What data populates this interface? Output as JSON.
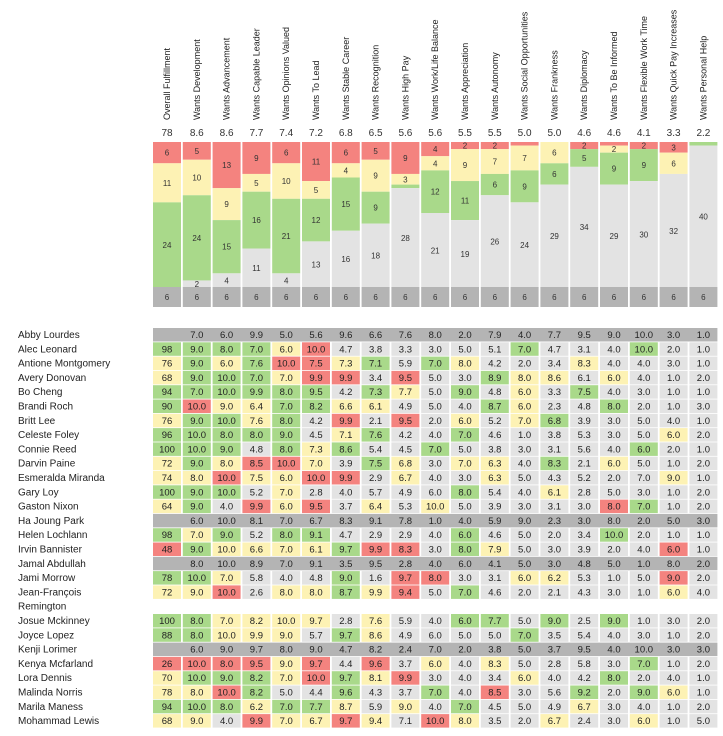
{
  "chart_data": {
    "type": "heatmap",
    "colors": {
      "red": "#f4837f",
      "yellow": "#fdf2b4",
      "green": "#a9d98a",
      "gray": "#e3e3e3",
      "darkgray": "#b4b4b4",
      "row_empty": "#b4b4b4"
    },
    "columns": [
      {
        "label": "Overall Fulfillment",
        "score": "78",
        "stack": [
          6,
          11,
          24,
          0
        ],
        "base": 6
      },
      {
        "label": "Wants Development",
        "score": "8.6",
        "stack": [
          5,
          10,
          24,
          2
        ],
        "base": 6
      },
      {
        "label": "Wants Advancement",
        "score": "8.6",
        "stack": [
          13,
          9,
          15,
          4
        ],
        "base": 6
      },
      {
        "label": "Wants Capable Leader",
        "score": "7.7",
        "stack": [
          9,
          5,
          16,
          11
        ],
        "base": 6
      },
      {
        "label": "Wants Opinions Valued",
        "score": "7.4",
        "stack": [
          6,
          10,
          21,
          4
        ],
        "base": 6
      },
      {
        "label": "Wants To Lead",
        "score": "7.2",
        "stack": [
          11,
          5,
          12,
          13
        ],
        "base": 6
      },
      {
        "label": "Wants Stable Career",
        "score": "6.8",
        "stack": [
          6,
          4,
          15,
          16
        ],
        "base": 6
      },
      {
        "label": "Wants Recognition",
        "score": "6.5",
        "stack": [
          5,
          9,
          9,
          18
        ],
        "base": 6
      },
      {
        "label": "Wants High Pay",
        "score": "5.6",
        "stack": [
          9,
          3,
          1,
          28
        ],
        "base": 6
      },
      {
        "label": "Wants Work/Life Balance",
        "score": "5.6",
        "stack": [
          4,
          4,
          12,
          21
        ],
        "base": 6
      },
      {
        "label": "Wants Appreciation",
        "score": "5.5",
        "stack": [
          2,
          9,
          11,
          19
        ],
        "base": 6
      },
      {
        "label": "Wants Autonomy",
        "score": "5.5",
        "stack": [
          2,
          7,
          6,
          26
        ],
        "base": 6
      },
      {
        "label": "Wants Social Opportunities",
        "score": "5.0",
        "stack": [
          1,
          7,
          9,
          24
        ],
        "base": 6
      },
      {
        "label": "Wants Frankness",
        "score": "5.0",
        "stack": [
          0,
          6,
          6,
          29
        ],
        "base": 6
      },
      {
        "label": "Wants Diplomacy",
        "score": "4.6",
        "stack": [
          2,
          0,
          5,
          34
        ],
        "base": 6
      },
      {
        "label": "Wants To Be Informed",
        "score": "4.6",
        "stack": [
          1,
          2,
          9,
          29
        ],
        "base": 6
      },
      {
        "label": "Wants Flexible Work Time",
        "score": "4.1",
        "stack": [
          2,
          0,
          9,
          30
        ],
        "base": 6
      },
      {
        "label": "Wants Quick Pay Increases",
        "score": "3.3",
        "stack": [
          3,
          6,
          0,
          32
        ],
        "base": 6
      },
      {
        "label": "Wants Personal Help",
        "score": "2.2",
        "stack": [
          0,
          0,
          1,
          40
        ],
        "base": 6
      }
    ],
    "rows": [
      {
        "name": "Abby Lourdes",
        "v": [
          "",
          "7.0",
          "6.0",
          "9.9",
          "5.0",
          "5.6",
          "9.6",
          "6.6",
          "7.6",
          "8.0",
          "2.0",
          "7.9",
          "4.0",
          "7.7",
          "9.5",
          "9.0",
          "10.0",
          "3.0",
          "1.0"
        ],
        "c": "GGGGGGGGGGGGGGGGGGG"
      },
      {
        "name": "Alec Leonard",
        "v": [
          "98",
          "9.0",
          "8.0",
          "7.0",
          "6.0",
          "10.0",
          "4.7",
          "3.8",
          "3.3",
          "3.0",
          "5.0",
          "5.1",
          "7.0",
          "4.7",
          "3.1",
          "4.0",
          "10.0",
          "2.0",
          "1.0"
        ],
        "c": "GGGGYRWWWWWWGWWWGWW"
      },
      {
        "name": "Antione Montgomery",
        "v": [
          "76",
          "9.0",
          "6.0",
          "7.6",
          "10.0",
          "7.5",
          "7.3",
          "7.1",
          "5.9",
          "7.0",
          "8.0",
          "4.2",
          "2.0",
          "3.4",
          "8.3",
          "4.0",
          "4.0",
          "3.0",
          "1.0"
        ],
        "c": "YGYGRRYGWGYWWWYWWWW"
      },
      {
        "name": "Avery Donovan",
        "v": [
          "68",
          "9.0",
          "10.0",
          "7.0",
          "7.0",
          "9.9",
          "9.9",
          "3.4",
          "9.5",
          "5.0",
          "3.0",
          "8.9",
          "8.0",
          "8.6",
          "6.1",
          "6.0",
          "4.0",
          "1.0",
          "2.0"
        ],
        "c": "YGGGYRRWRWWGYYWYWWW"
      },
      {
        "name": "Bo Cheng",
        "v": [
          "94",
          "7.0",
          "10.0",
          "9.9",
          "8.0",
          "9.5",
          "4.2",
          "7.3",
          "7.7",
          "5.0",
          "9.0",
          "4.8",
          "6.0",
          "3.3",
          "7.5",
          "4.0",
          "3.0",
          "1.0",
          "1.0"
        ],
        "c": "GGGGGGWGYWGWYWGWWWW"
      },
      {
        "name": "Brandi Roch",
        "v": [
          "90",
          "10.0",
          "9.0",
          "6.4",
          "7.0",
          "8.2",
          "6.6",
          "6.1",
          "4.9",
          "5.0",
          "4.0",
          "8.7",
          "6.0",
          "2.3",
          "4.8",
          "8.0",
          "2.0",
          "1.0",
          "3.0"
        ],
        "c": "GRYYGGYYWWWGYWWGWWW"
      },
      {
        "name": "Britt Lee",
        "v": [
          "76",
          "9.0",
          "10.0",
          "7.6",
          "8.0",
          "4.2",
          "9.9",
          "2.1",
          "9.5",
          "2.0",
          "6.0",
          "5.2",
          "7.0",
          "6.8",
          "3.9",
          "3.0",
          "5.0",
          "4.0",
          "1.0"
        ],
        "c": "YGGYGWRWRWYWYGWWWWW"
      },
      {
        "name": "Celeste Foley",
        "v": [
          "96",
          "10.0",
          "8.0",
          "8.0",
          "9.0",
          "4.5",
          "7.1",
          "7.6",
          "4.2",
          "4.0",
          "7.0",
          "4.6",
          "1.0",
          "3.8",
          "5.3",
          "3.0",
          "5.0",
          "6.0",
          "2.0"
        ],
        "c": "GGGGGWYGWWGWWWWWWYW"
      },
      {
        "name": "Connie Reed",
        "v": [
          "100",
          "10.0",
          "9.0",
          "4.8",
          "8.0",
          "7.3",
          "8.6",
          "5.4",
          "4.5",
          "7.0",
          "5.0",
          "3.8",
          "3.0",
          "3.1",
          "5.6",
          "4.0",
          "6.0",
          "2.0",
          "1.0"
        ],
        "c": "GGGWGYGWWGWWWWWWGWW"
      },
      {
        "name": "Darvin Paine",
        "v": [
          "72",
          "9.0",
          "8.0",
          "8.5",
          "10.0",
          "7.0",
          "3.9",
          "7.5",
          "6.8",
          "3.0",
          "7.0",
          "6.3",
          "4.0",
          "8.3",
          "2.1",
          "6.0",
          "5.0",
          "1.0",
          "2.0"
        ],
        "c": "YGYRRYWGYWYYWGWYWWW"
      },
      {
        "name": "Esmeralda Miranda",
        "v": [
          "74",
          "8.0",
          "10.0",
          "7.5",
          "6.0",
          "10.0",
          "9.9",
          "2.9",
          "6.7",
          "4.0",
          "3.0",
          "6.3",
          "5.0",
          "4.3",
          "5.2",
          "2.0",
          "7.0",
          "9.0",
          "1.0"
        ],
        "c": "YYRYYRRWYWWYWWWWWYW"
      },
      {
        "name": "Gary Loy",
        "v": [
          "100",
          "9.0",
          "10.0",
          "5.2",
          "7.0",
          "2.8",
          "4.0",
          "5.7",
          "4.9",
          "6.0",
          "8.0",
          "5.4",
          "4.0",
          "6.1",
          "2.8",
          "5.0",
          "3.0",
          "1.0",
          "2.0"
        ],
        "c": "GGGWYWWWWWGWWYWWWWW"
      },
      {
        "name": "Gaston Nixon",
        "v": [
          "64",
          "9.0",
          "4.0",
          "9.9",
          "6.0",
          "9.5",
          "3.7",
          "6.4",
          "5.3",
          "10.0",
          "5.0",
          "3.9",
          "3.0",
          "3.1",
          "3.0",
          "8.0",
          "7.0",
          "1.0",
          "2.0"
        ],
        "c": "YGWRYRWYWYWWWWWRGWW"
      },
      {
        "name": "Ha Joung Park",
        "v": [
          "",
          "6.0",
          "10.0",
          "8.1",
          "7.0",
          "6.7",
          "8.3",
          "9.1",
          "7.8",
          "1.0",
          "4.0",
          "5.9",
          "9.0",
          "2.3",
          "3.0",
          "8.0",
          "2.0",
          "5.0",
          "3.0"
        ],
        "c": "GGGGGGGGGGGGGGGGGGG"
      },
      {
        "name": "Helen Lochlann",
        "v": [
          "98",
          "7.0",
          "9.0",
          "5.2",
          "8.0",
          "9.1",
          "4.7",
          "2.9",
          "2.9",
          "4.0",
          "6.0",
          "4.6",
          "5.0",
          "2.0",
          "3.4",
          "10.0",
          "2.0",
          "1.0",
          "1.0"
        ],
        "c": "GYGWGGWWWWGWWWWGWWW"
      },
      {
        "name": "Irvin Bannister",
        "v": [
          "48",
          "9.0",
          "10.0",
          "6.6",
          "7.0",
          "6.1",
          "9.7",
          "9.9",
          "8.3",
          "3.0",
          "8.0",
          "7.9",
          "5.0",
          "3.0",
          "3.9",
          "2.0",
          "4.0",
          "6.0",
          "1.0"
        ],
        "c": "RGYYYYGRRWGYWWWWWRW"
      },
      {
        "name": "Jamal Abdullah",
        "v": [
          "",
          "8.0",
          "10.0",
          "8.9",
          "7.0",
          "9.1",
          "3.5",
          "9.5",
          "2.8",
          "4.0",
          "6.0",
          "4.1",
          "5.0",
          "3.0",
          "4.8",
          "5.0",
          "1.0",
          "8.0",
          "2.0"
        ],
        "c": "GGGGGGGGGGGGGGGGGGG"
      },
      {
        "name": "Jami Morrow",
        "v": [
          "78",
          "10.0",
          "7.0",
          "5.8",
          "4.0",
          "4.8",
          "9.0",
          "1.6",
          "9.7",
          "8.0",
          "3.0",
          "3.1",
          "6.0",
          "6.2",
          "5.3",
          "1.0",
          "5.0",
          "9.0",
          "2.0"
        ],
        "c": "GGYWWWGWRRWWYYWWWRW"
      },
      {
        "name": "Jean-François Remington",
        "v": [
          "72",
          "9.0",
          "10.0",
          "2.6",
          "8.0",
          "8.0",
          "8.7",
          "9.9",
          "9.4",
          "5.0",
          "7.0",
          "4.6",
          "2.0",
          "2.1",
          "4.3",
          "3.0",
          "1.0",
          "6.0",
          "4.0"
        ],
        "c": "YYRWYYGYRWGWWWWWWYW"
      },
      {
        "name": "Josue Mckinney",
        "v": [
          "100",
          "8.0",
          "7.0",
          "8.2",
          "10.0",
          "9.7",
          "2.8",
          "7.6",
          "5.9",
          "4.0",
          "6.0",
          "7.7",
          "5.0",
          "9.0",
          "2.5",
          "9.0",
          "1.0",
          "3.0",
          "2.0"
        ],
        "c": "GGYYYYWYWWGGWGWGWWW"
      },
      {
        "name": "Joyce Lopez",
        "v": [
          "88",
          "8.0",
          "10.0",
          "9.9",
          "9.0",
          "5.7",
          "9.7",
          "8.6",
          "4.9",
          "6.0",
          "5.0",
          "5.0",
          "7.0",
          "3.5",
          "5.4",
          "4.0",
          "3.0",
          "1.0",
          "2.0"
        ],
        "c": "GGYYYWGYWWWWGWWWWWW"
      },
      {
        "name": "Kenji Lorimer",
        "v": [
          "",
          "6.0",
          "9.0",
          "9.7",
          "8.0",
          "9.0",
          "4.7",
          "8.2",
          "2.4",
          "7.0",
          "2.0",
          "3.8",
          "5.0",
          "3.7",
          "9.5",
          "4.0",
          "10.0",
          "3.0",
          "3.0"
        ],
        "c": "GGGGGGGGGGGGGGGGGGG"
      },
      {
        "name": "Kenya Mcfarland",
        "v": [
          "26",
          "10.0",
          "8.0",
          "9.5",
          "9.0",
          "9.7",
          "4.4",
          "9.6",
          "3.7",
          "6.0",
          "4.0",
          "8.3",
          "5.0",
          "2.8",
          "5.8",
          "3.0",
          "7.0",
          "1.0",
          "2.0"
        ],
        "c": "RRRRYRWRWYWYWWWWGWW"
      },
      {
        "name": "Lora Dennis",
        "v": [
          "70",
          "10.0",
          "9.0",
          "8.2",
          "7.0",
          "10.0",
          "9.7",
          "8.1",
          "9.9",
          "3.0",
          "4.0",
          "3.4",
          "6.0",
          "4.0",
          "4.2",
          "8.0",
          "2.0",
          "4.0",
          "1.0"
        ],
        "c": "YGGGYRGYRWWWYWWGWWW"
      },
      {
        "name": "Malinda Norris",
        "v": [
          "78",
          "8.0",
          "10.0",
          "8.2",
          "5.0",
          "4.4",
          "9.6",
          "4.3",
          "3.7",
          "7.0",
          "4.0",
          "8.5",
          "3.0",
          "5.6",
          "9.2",
          "2.0",
          "9.0",
          "6.0",
          "1.0"
        ],
        "c": "YYRGWWGWWGWRWWGWGYW"
      },
      {
        "name": "Marila Maness",
        "v": [
          "94",
          "10.0",
          "8.0",
          "6.2",
          "7.0",
          "7.7",
          "8.7",
          "5.9",
          "9.0",
          "4.0",
          "7.0",
          "4.5",
          "5.0",
          "4.9",
          "6.7",
          "3.0",
          "4.0",
          "1.0",
          "2.0"
        ],
        "c": "GGGYGGYWYWGWWWYWWWW"
      },
      {
        "name": "Mohammad Lewis",
        "v": [
          "68",
          "9.0",
          "4.0",
          "9.9",
          "7.0",
          "6.7",
          "9.7",
          "9.4",
          "7.1",
          "10.0",
          "8.0",
          "3.5",
          "2.0",
          "6.7",
          "2.4",
          "3.0",
          "6.0",
          "1.0",
          "5.0"
        ],
        "c": "YYWRYYRYWRYWWYWWYWW"
      }
    ]
  }
}
